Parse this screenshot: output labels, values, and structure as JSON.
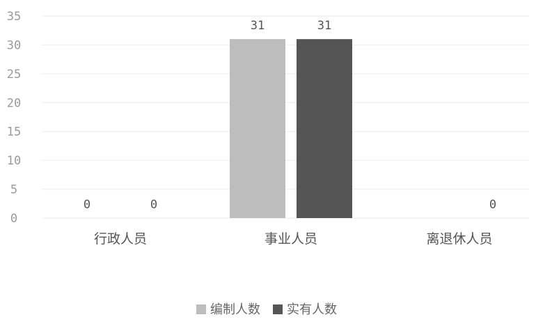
{
  "chart_data": {
    "type": "bar",
    "categories": [
      "行政人员",
      "事业人员",
      "离退休人员"
    ],
    "series": [
      {
        "name": "编制人数",
        "values": [
          0,
          31,
          0
        ],
        "color": "#bdbdbd"
      },
      {
        "name": "实有人数",
        "values": [
          0,
          31,
          0
        ],
        "color": "#555555"
      }
    ],
    "data_labels": [
      [
        "0",
        "31",
        ""
      ],
      [
        "0",
        "31",
        "0"
      ]
    ],
    "ylim": [
      0,
      35
    ],
    "yticks": [
      0,
      5,
      10,
      15,
      20,
      25,
      30,
      35
    ],
    "grid": true,
    "legend_position": "bottom-center"
  }
}
